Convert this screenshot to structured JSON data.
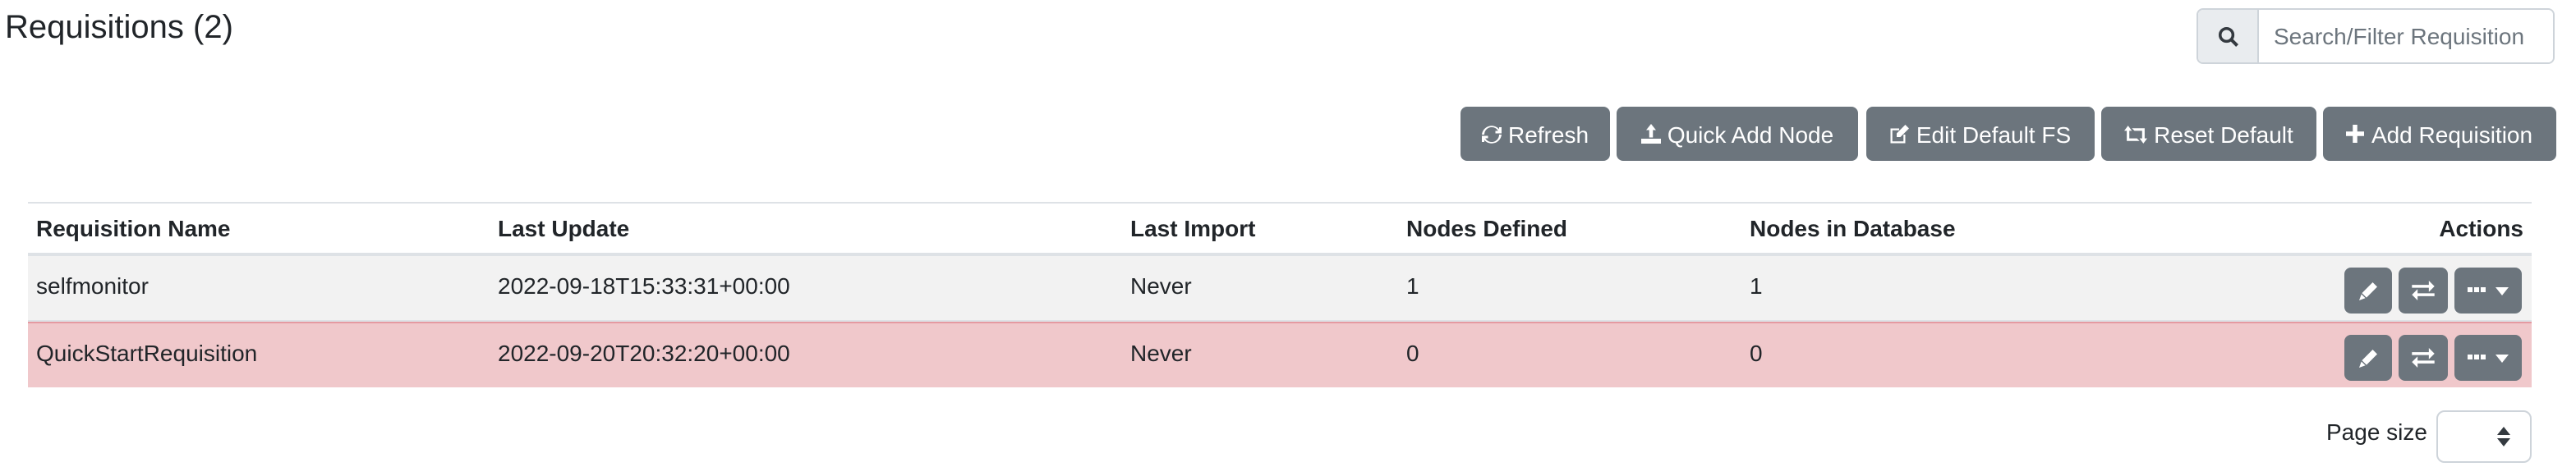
{
  "page": {
    "title": "Requisitions (2)"
  },
  "search": {
    "placeholder": "Search/Filter Requisition",
    "icon": "search-icon"
  },
  "toolbar": {
    "refresh": "Refresh",
    "quick_add_node": "Quick Add Node",
    "edit_default_fs": "Edit Default FS",
    "reset_default": "Reset Default",
    "add_requisition": "Add Requisition"
  },
  "table": {
    "headers": [
      "Requisition Name",
      "Last Update",
      "Last Import",
      "Nodes Defined",
      "Nodes in Database",
      "Actions"
    ],
    "rows": [
      {
        "name": "selfmonitor",
        "last_update": "2022-09-18T15:33:31+00:00",
        "last_import": "Never",
        "nodes_defined": "1",
        "nodes_in_db": "1"
      },
      {
        "name": "QuickStartRequisition",
        "last_update": "2022-09-20T20:32:20+00:00",
        "last_import": "Never",
        "nodes_defined": "0",
        "nodes_in_db": "0"
      }
    ]
  },
  "pagination": {
    "page_size_label": "Page size",
    "page_size_value": ""
  },
  "colors": {
    "button": "#6c757d",
    "row_alt": "#f2f2f2",
    "row_danger": "#f0c8cb"
  }
}
